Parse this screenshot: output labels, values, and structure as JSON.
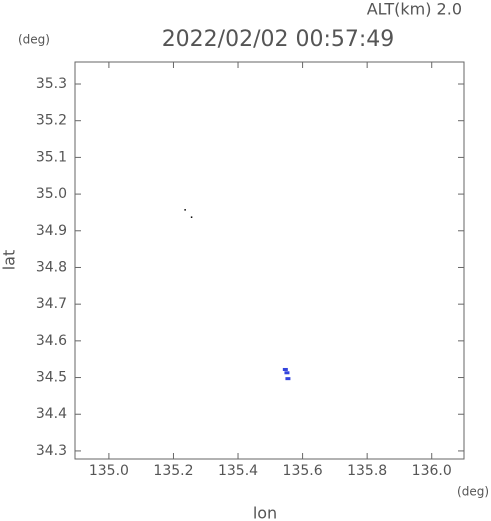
{
  "chart_data": {
    "type": "scatter",
    "title": "2022/02/02 00:57:49",
    "annotation": "ALT(km) 2.0",
    "y_unit": "(deg)",
    "x_unit": "(deg)",
    "x_label": "lon",
    "y_label": "lat",
    "xlim": [
      134.895,
      136.1
    ],
    "xticks": [
      {
        "value": 135.0,
        "label": "135.0"
      },
      135.2,
      135.4,
      135.6,
      135.8,
      {
        "value": 136.0,
        "label": "136.0"
      }
    ],
    "ylim": [
      34.278,
      35.36
    ],
    "yticks": [
      34.3,
      34.4,
      34.5,
      34.6,
      34.7,
      34.8,
      34.9,
      {
        "value": 35.0,
        "label": "35.0"
      },
      35.1,
      35.2,
      35.3
    ],
    "series": [
      {
        "color": "#000000",
        "x": [
          135.24,
          135.26
        ],
        "values": [
          34.955,
          34.935
        ]
      },
      {
        "color": "#3344dd",
        "x": [
          135.545,
          135.55,
          135.553
        ],
        "values": [
          34.522,
          34.513,
          34.497
        ]
      }
    ]
  }
}
